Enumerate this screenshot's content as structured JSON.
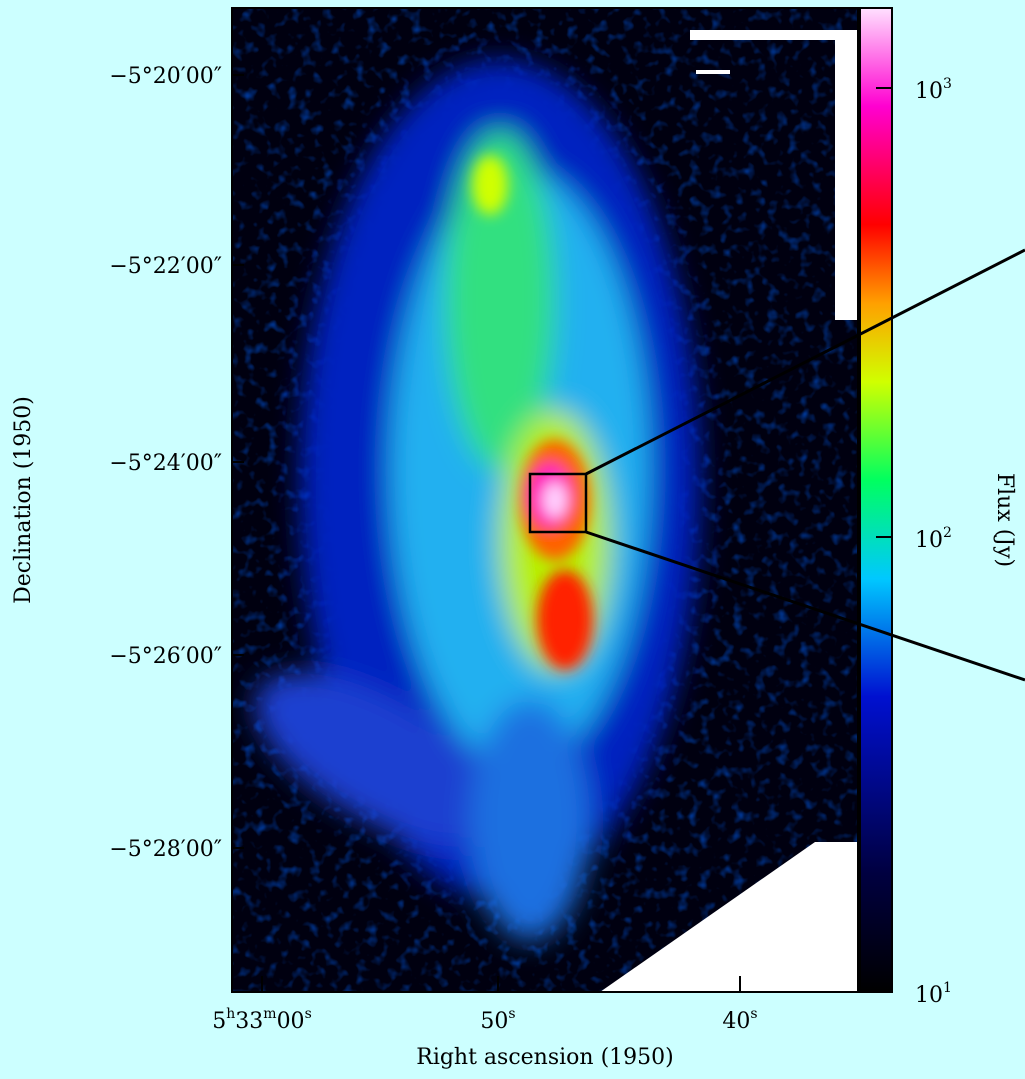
{
  "figure": {
    "y_label": "Declination (1950)",
    "x_label": "Right ascension (1950)",
    "y_ticks": [
      "−5°20′00″",
      "−5°22′00″",
      "−5°24′00″",
      "−5°26′00″",
      "−5°28′00″"
    ],
    "x_ticks": [
      [
        "5",
        "h",
        "33",
        "m",
        "00",
        "s"
      ],
      [
        "50",
        "s"
      ],
      [
        "40",
        "s"
      ]
    ],
    "colorbar": {
      "label": "Flux (Jy)",
      "ticks": [
        [
          "10",
          "1"
        ],
        [
          "10",
          "2"
        ],
        [
          "10",
          "3"
        ]
      ]
    }
  }
}
